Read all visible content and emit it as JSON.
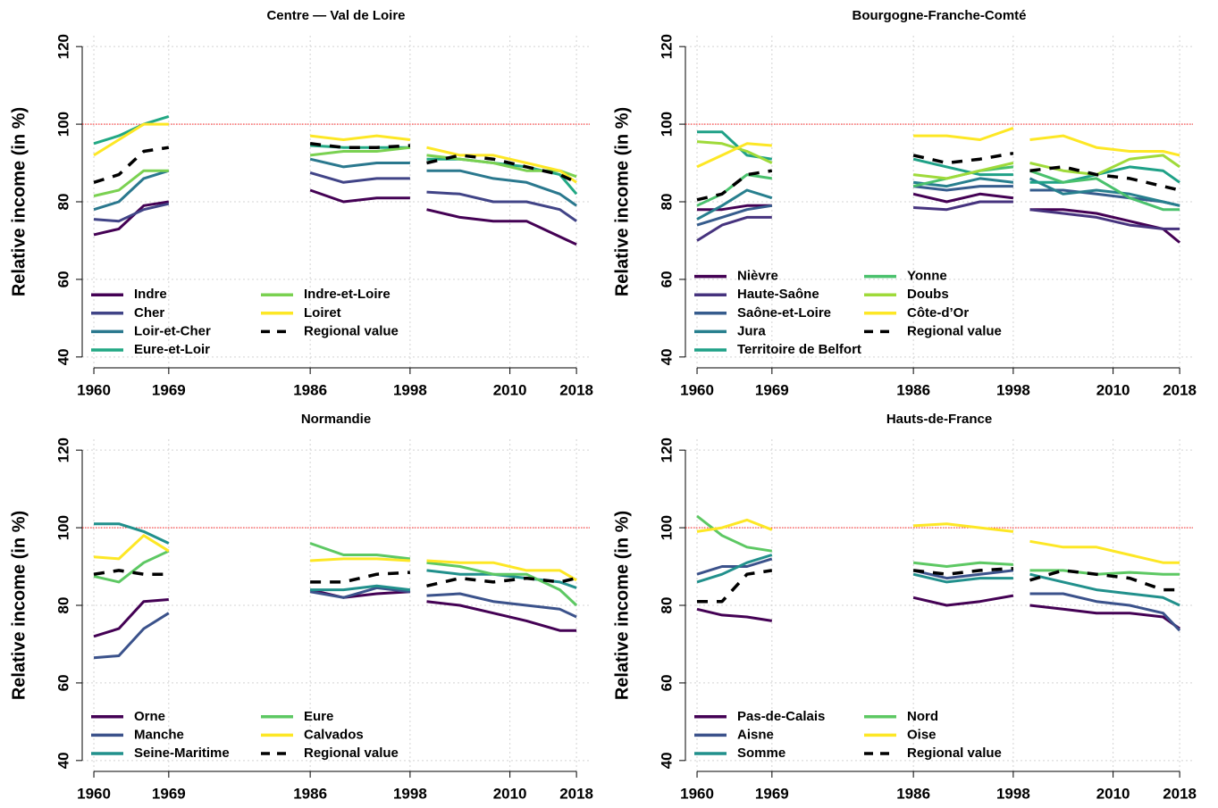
{
  "chart_data": [
    {
      "type": "line",
      "title": "Centre — Val de Loire",
      "y_label": "Relative income (in %)",
      "x": [
        1960,
        1963,
        1966,
        1969,
        1970,
        1986,
        1990,
        1994,
        1998,
        1999,
        2000,
        2004,
        2008,
        2012,
        2016,
        2018
      ],
      "xlim": [
        1958.6,
        2019.6
      ],
      "ylim": [
        37.2,
        122.8
      ],
      "xticks": [
        1960,
        1969,
        1986,
        1998,
        2010,
        2018
      ],
      "yticks": [
        40,
        60,
        80,
        100,
        120
      ],
      "grid": true,
      "hline": 100,
      "hline_color": "#ff0000",
      "legend": "bottomleft",
      "series": [
        {
          "name": "Indre",
          "color": "#440154",
          "values": [
            71.5,
            73,
            79,
            80,
            null,
            83,
            80,
            81,
            81,
            null,
            78,
            76,
            75,
            75,
            71,
            69
          ]
        },
        {
          "name": "Cher",
          "color": "#414487",
          "values": [
            75.5,
            75,
            78,
            79.5,
            null,
            87.5,
            85,
            86,
            86,
            null,
            82.5,
            82,
            80,
            80,
            78,
            75
          ]
        },
        {
          "name": "Loir-et-Cher",
          "color": "#2A788E",
          "values": [
            78,
            80,
            86,
            88,
            null,
            91,
            89,
            90,
            90,
            null,
            88,
            88,
            86,
            85,
            82,
            79
          ]
        },
        {
          "name": "Eure-et-Loir",
          "color": "#22A884",
          "values": [
            95,
            97,
            100,
            102,
            null,
            94.5,
            94,
            94,
            94,
            null,
            91,
            91,
            90,
            89,
            87,
            82
          ]
        },
        {
          "name": "Indre-et-Loire",
          "color": "#7AD151",
          "values": [
            81.5,
            83,
            88,
            88,
            null,
            92,
            93,
            93,
            94,
            null,
            92,
            91,
            90,
            88,
            88,
            86.5
          ]
        },
        {
          "name": "Loiret",
          "color": "#FDE725",
          "values": [
            92,
            96,
            100,
            100,
            null,
            97,
            96,
            97,
            96,
            null,
            94,
            92,
            92,
            90,
            88,
            85
          ]
        },
        {
          "name": "Regional value",
          "color": "#000000",
          "dashed": true,
          "values": [
            85,
            87,
            93,
            94,
            null,
            95,
            94,
            94,
            94.5,
            null,
            90,
            92,
            91,
            89,
            87,
            85
          ]
        }
      ]
    },
    {
      "type": "line",
      "title": "Bourgogne-Franche-Comté",
      "y_label": "Relative income (in %)",
      "x": [
        1960,
        1963,
        1966,
        1969,
        1970,
        1986,
        1990,
        1994,
        1998,
        1999,
        2000,
        2004,
        2008,
        2012,
        2016,
        2018
      ],
      "xlim": [
        1958.6,
        2019.6
      ],
      "ylim": [
        37.2,
        122.8
      ],
      "xticks": [
        1960,
        1969,
        1986,
        1998,
        2010,
        2018
      ],
      "yticks": [
        40,
        60,
        80,
        100,
        120
      ],
      "grid": true,
      "hline": 100,
      "hline_color": "#ff0000",
      "legend": "bottomleft",
      "series": [
        {
          "name": "Nièvre",
          "color": "#440154",
          "values": [
            78,
            78,
            79,
            79,
            null,
            82,
            80,
            82,
            81,
            null,
            78,
            78,
            77,
            75,
            73,
            69.5
          ]
        },
        {
          "name": "Haute-Saône",
          "color": "#46337E",
          "values": [
            70,
            74,
            76,
            76,
            null,
            78.5,
            78,
            80,
            80,
            null,
            78,
            77,
            76,
            74,
            73,
            73
          ]
        },
        {
          "name": "Saône-et-Loire",
          "color": "#365C8D",
          "values": [
            74,
            76,
            78,
            79,
            null,
            84,
            83,
            84,
            84,
            null,
            83,
            83,
            82,
            81,
            80,
            79
          ]
        },
        {
          "name": "Jura",
          "color": "#277F8E",
          "values": [
            75.5,
            79,
            83,
            81,
            null,
            85,
            84,
            86,
            85,
            null,
            86,
            82,
            83,
            82,
            80,
            79
          ]
        },
        {
          "name": "Territoire de Belfort",
          "color": "#1FA187",
          "values": [
            98,
            98,
            92,
            91,
            null,
            91,
            89,
            87,
            87,
            null,
            85,
            85,
            87,
            89,
            88,
            85
          ]
        },
        {
          "name": "Yonne",
          "color": "#4AC16D",
          "values": [
            79,
            82,
            87,
            86,
            null,
            84,
            86,
            88,
            89,
            null,
            88,
            85,
            86,
            81,
            78,
            78
          ]
        },
        {
          "name": "Doubs",
          "color": "#9FDA3A",
          "values": [
            95.5,
            95,
            93,
            90,
            null,
            87,
            86,
            88,
            90,
            null,
            90,
            88,
            87,
            91,
            92,
            89
          ]
        },
        {
          "name": "Côte-d’Or",
          "color": "#FDE725",
          "values": [
            89,
            92,
            95,
            94.5,
            null,
            97,
            97,
            96,
            99,
            null,
            96,
            97,
            94,
            93,
            93,
            92
          ]
        },
        {
          "name": "Regional value",
          "color": "#000000",
          "dashed": true,
          "values": [
            80.5,
            82,
            87,
            88,
            null,
            92,
            90,
            91,
            92.5,
            null,
            88,
            89,
            87,
            86,
            84,
            83
          ]
        }
      ]
    },
    {
      "type": "line",
      "title": "Normandie",
      "y_label": "Relative income (in %)",
      "x": [
        1960,
        1963,
        1966,
        1969,
        1970,
        1986,
        1990,
        1994,
        1998,
        1999,
        2000,
        2004,
        2008,
        2012,
        2016,
        2018
      ],
      "xlim": [
        1958.6,
        2019.6
      ],
      "ylim": [
        37.2,
        122.8
      ],
      "xticks": [
        1960,
        1969,
        1986,
        1998,
        2010,
        2018
      ],
      "yticks": [
        40,
        60,
        80,
        100,
        120
      ],
      "grid": true,
      "hline": 100,
      "hline_color": "#ff0000",
      "legend": "bottomleft",
      "series": [
        {
          "name": "Orne",
          "color": "#440154",
          "values": [
            72,
            74,
            81,
            81.5,
            null,
            84,
            82,
            83,
            83.5,
            null,
            81,
            80,
            78,
            76,
            73.5,
            73.5
          ]
        },
        {
          "name": "Manche",
          "color": "#3B528B",
          "values": [
            66.5,
            67,
            74,
            78,
            null,
            83.5,
            82,
            84.5,
            83.5,
            null,
            82.5,
            83,
            81,
            80,
            79,
            77
          ]
        },
        {
          "name": "Seine-Maritime",
          "color": "#21908C",
          "values": [
            101,
            101,
            99,
            96,
            null,
            84,
            84,
            85,
            84,
            null,
            89,
            88,
            88,
            87,
            86,
            84.5
          ]
        },
        {
          "name": "Eure",
          "color": "#5DC863",
          "values": [
            87.5,
            86,
            91,
            94,
            null,
            96,
            93,
            93,
            92,
            null,
            91,
            90,
            88,
            88,
            84,
            80
          ]
        },
        {
          "name": "Calvados",
          "color": "#FDE725",
          "values": [
            92.5,
            92,
            98,
            94,
            null,
            91.5,
            92,
            92,
            91.5,
            null,
            91.5,
            91,
            91,
            89,
            89,
            86.5
          ]
        },
        {
          "name": "Regional value",
          "color": "#000000",
          "dashed": true,
          "values": [
            88,
            89,
            88,
            88,
            null,
            86,
            86,
            88,
            88.5,
            null,
            85,
            87,
            86,
            87,
            86,
            87
          ]
        }
      ]
    },
    {
      "type": "line",
      "title": "Hauts-de-France",
      "y_label": "Relative income (in %)",
      "x": [
        1960,
        1963,
        1966,
        1969,
        1970,
        1986,
        1990,
        1994,
        1998,
        1999,
        2000,
        2004,
        2008,
        2012,
        2016,
        2018
      ],
      "xlim": [
        1958.6,
        2019.6
      ],
      "ylim": [
        37.2,
        122.8
      ],
      "xticks": [
        1960,
        1969,
        1986,
        1998,
        2010,
        2018
      ],
      "yticks": [
        40,
        60,
        80,
        100,
        120
      ],
      "grid": true,
      "hline": 100,
      "hline_color": "#ff0000",
      "legend": "bottomleft",
      "series": [
        {
          "name": "Pas-de-Calais",
          "color": "#440154",
          "values": [
            79,
            77.5,
            77,
            76,
            null,
            82,
            80,
            81,
            82.5,
            null,
            80,
            79,
            78,
            78,
            77,
            74
          ]
        },
        {
          "name": "Aisne",
          "color": "#3B528B",
          "values": [
            88,
            90,
            90,
            92,
            null,
            89,
            87,
            88,
            89,
            null,
            83,
            83,
            81,
            80,
            78,
            73.5
          ]
        },
        {
          "name": "Somme",
          "color": "#21908C",
          "values": [
            86,
            88,
            91,
            93,
            null,
            88,
            86,
            87,
            87,
            null,
            88,
            86,
            84,
            83,
            82,
            80
          ]
        },
        {
          "name": "Nord",
          "color": "#5DC863",
          "values": [
            103,
            98,
            95,
            94,
            null,
            91,
            90,
            91,
            90.5,
            null,
            89,
            89,
            88,
            88.5,
            88,
            88
          ]
        },
        {
          "name": "Oise",
          "color": "#FDE725",
          "values": [
            99,
            100,
            102,
            99.5,
            null,
            100.5,
            101,
            100,
            99,
            null,
            96.5,
            95,
            95,
            93,
            91,
            91
          ]
        },
        {
          "name": "Regional value",
          "color": "#000000",
          "dashed": true,
          "values": [
            81,
            81,
            88,
            89,
            null,
            89,
            88,
            89,
            89.5,
            null,
            86.5,
            89,
            88,
            87,
            84,
            84
          ]
        }
      ]
    }
  ]
}
